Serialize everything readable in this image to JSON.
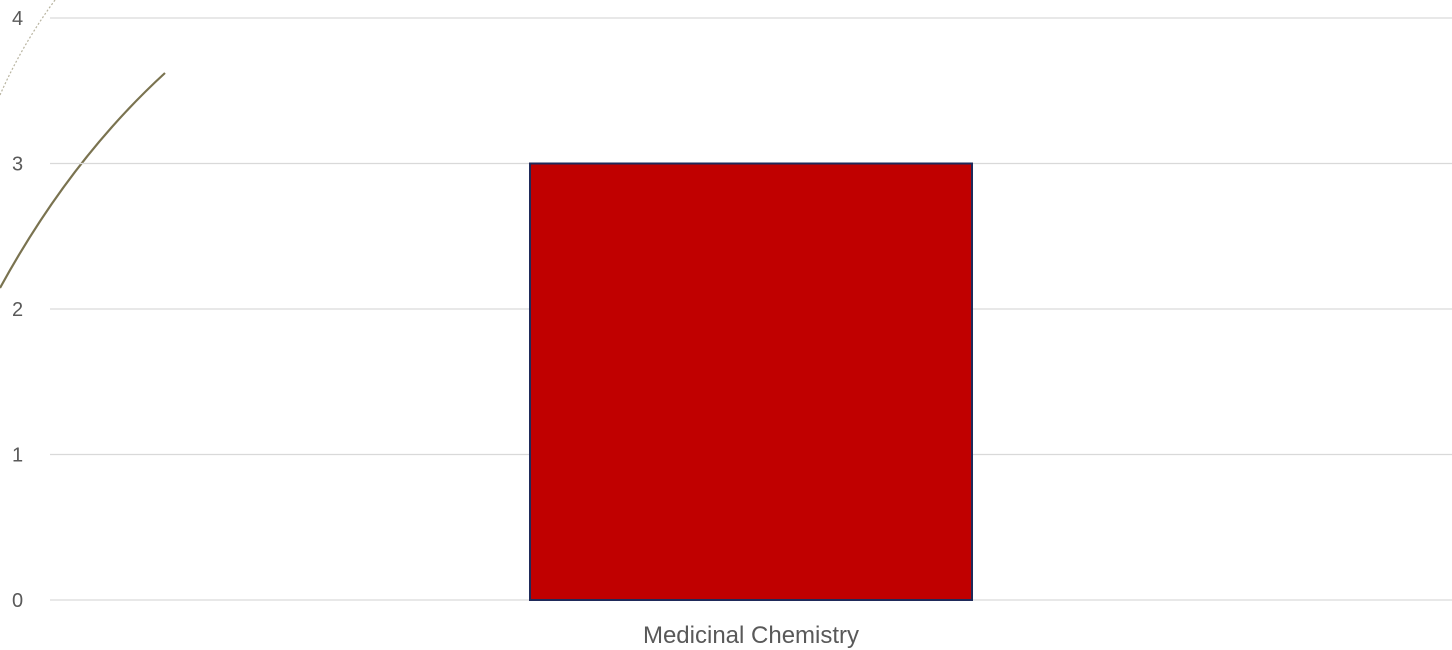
{
  "chart_data": {
    "type": "bar",
    "categories": [
      "Medicinal Chemistry"
    ],
    "values": [
      3
    ],
    "ylim": [
      0,
      4
    ],
    "yticks": [
      0,
      1,
      2,
      3,
      4
    ],
    "grid": true,
    "colors": {
      "bar_fill": "#c00000",
      "bar_stroke": "#1f2a5a",
      "grid": "#d9d9d9",
      "text": "#595959",
      "decoration": "#7a7350"
    }
  }
}
